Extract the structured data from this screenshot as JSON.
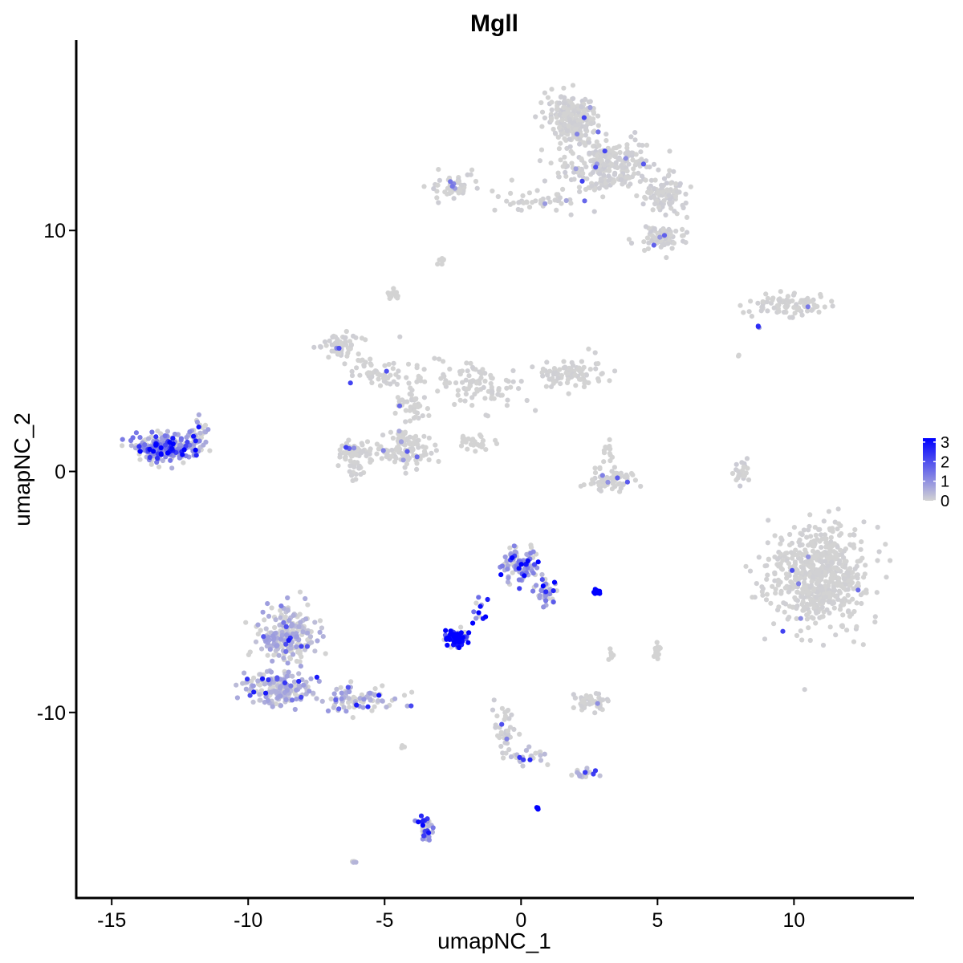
{
  "chart_data": {
    "type": "scatter",
    "title": "Mgll",
    "xlabel": "umapNC_1",
    "ylabel": "umapNC_2",
    "xlim": [
      -16.3,
      14.4
    ],
    "ylim": [
      -17.7,
      17.9
    ],
    "x_ticks": [
      -15,
      -10,
      -5,
      0,
      5,
      10
    ],
    "x_tick_labels": [
      "-15",
      "-10",
      "-5",
      "0",
      "5",
      "10"
    ],
    "y_ticks": [
      -10,
      0,
      10
    ],
    "y_tick_labels": [
      "-10",
      "0",
      "10"
    ],
    "grid": false,
    "legend": {
      "position": "right",
      "type": "colorbar",
      "min": 0,
      "max": 3.2,
      "ticks": [
        0,
        1,
        2,
        3
      ],
      "tick_labels": [
        "0",
        "1",
        "2",
        "3"
      ],
      "low_color": "#d3d3d3",
      "high_color": "#0000ff"
    },
    "clusters": [
      {
        "cx": 1.8,
        "cy": 14.6,
        "sx": 0.8,
        "sy": 0.9,
        "n": 220,
        "expr": 0.1,
        "hi_frac": 0.02
      },
      {
        "cx": 3.2,
        "cy": 12.6,
        "sx": 1.6,
        "sy": 1.1,
        "n": 260,
        "expr": 0.1,
        "hi_frac": 0.02
      },
      {
        "cx": 5.3,
        "cy": 11.5,
        "sx": 0.7,
        "sy": 0.8,
        "n": 90,
        "expr": 0.1,
        "hi_frac": 0.02
      },
      {
        "cx": 5.2,
        "cy": 9.7,
        "sx": 0.8,
        "sy": 0.5,
        "n": 80,
        "expr": 0.1,
        "hi_frac": 0.03
      },
      {
        "cx": 0.6,
        "cy": 11.2,
        "sx": 1.3,
        "sy": 0.3,
        "n": 40,
        "expr": 0.05,
        "hi_frac": 0.05
      },
      {
        "cx": -2.4,
        "cy": 11.8,
        "sx": 0.9,
        "sy": 0.4,
        "n": 60,
        "expr": 0.1,
        "hi_frac": 0.05
      },
      {
        "cx": -2.9,
        "cy": 8.8,
        "sx": 0.15,
        "sy": 0.15,
        "n": 8,
        "expr": 0.0,
        "hi_frac": 0.0
      },
      {
        "cx": -4.6,
        "cy": 7.4,
        "sx": 0.2,
        "sy": 0.3,
        "n": 15,
        "expr": 0.0,
        "hi_frac": 0.0
      },
      {
        "cx": 9.8,
        "cy": 6.9,
        "sx": 1.3,
        "sy": 0.35,
        "n": 90,
        "expr": 0.05,
        "hi_frac": 0.02
      },
      {
        "cx": -6.7,
        "cy": 5.2,
        "sx": 0.8,
        "sy": 0.5,
        "n": 60,
        "expr": 0.1,
        "hi_frac": 0.03
      },
      {
        "cx": -5.4,
        "cy": 4.0,
        "sx": 0.8,
        "sy": 0.6,
        "n": 45,
        "expr": 0.05,
        "hi_frac": 0.03
      },
      {
        "cx": -4.0,
        "cy": 3.0,
        "sx": 0.6,
        "sy": 1.5,
        "n": 60,
        "expr": 0.05,
        "hi_frac": 0.03
      },
      {
        "cx": -1.5,
        "cy": 3.6,
        "sx": 1.3,
        "sy": 0.9,
        "n": 90,
        "expr": 0.05,
        "hi_frac": 0.02
      },
      {
        "cx": 1.8,
        "cy": 4.1,
        "sx": 1.2,
        "sy": 0.6,
        "n": 90,
        "expr": 0.05,
        "hi_frac": 0.02
      },
      {
        "cx": -4.3,
        "cy": 0.9,
        "sx": 0.8,
        "sy": 0.7,
        "n": 110,
        "expr": 0.05,
        "hi_frac": 0.02
      },
      {
        "cx": -6.1,
        "cy": 0.6,
        "sx": 0.6,
        "sy": 0.6,
        "n": 70,
        "expr": 0.05,
        "hi_frac": 0.02
      },
      {
        "cx": -1.7,
        "cy": 1.2,
        "sx": 0.8,
        "sy": 0.3,
        "n": 25,
        "expr": 0.0,
        "hi_frac": 0.0
      },
      {
        "cx": -13.1,
        "cy": 1.0,
        "sx": 0.9,
        "sy": 0.5,
        "n": 280,
        "expr": 1.3,
        "hi_frac": 0.18
      },
      {
        "cx": -11.8,
        "cy": 1.6,
        "sx": 0.35,
        "sy": 0.6,
        "n": 40,
        "expr": 1.0,
        "hi_frac": 0.1
      },
      {
        "cx": 3.2,
        "cy": -0.3,
        "sx": 0.8,
        "sy": 0.5,
        "n": 70,
        "expr": 0.05,
        "hi_frac": 0.03
      },
      {
        "cx": 3.2,
        "cy": 0.9,
        "sx": 0.2,
        "sy": 0.5,
        "n": 12,
        "expr": 0.0,
        "hi_frac": 0.0
      },
      {
        "cx": 8.1,
        "cy": 0.0,
        "sx": 0.25,
        "sy": 0.5,
        "n": 25,
        "expr": 0.1,
        "hi_frac": 0.05
      },
      {
        "cx": 10.9,
        "cy": -4.3,
        "sx": 1.6,
        "sy": 1.8,
        "n": 620,
        "expr": 0.05,
        "hi_frac": 0.015
      },
      {
        "cx": -0.1,
        "cy": -3.9,
        "sx": 0.6,
        "sy": 0.7,
        "n": 110,
        "expr": 1.2,
        "hi_frac": 0.12
      },
      {
        "cx": 0.9,
        "cy": -4.9,
        "sx": 0.35,
        "sy": 0.7,
        "n": 40,
        "expr": 1.2,
        "hi_frac": 0.12
      },
      {
        "cx": 2.8,
        "cy": -5.0,
        "sx": 0.12,
        "sy": 0.08,
        "n": 14,
        "expr": 3.1,
        "hi_frac": 1.0
      },
      {
        "cx": -2.4,
        "cy": -6.9,
        "sx": 0.35,
        "sy": 0.28,
        "n": 80,
        "expr": 2.0,
        "hi_frac": 0.5
      },
      {
        "cx": -1.5,
        "cy": -5.6,
        "sx": 0.3,
        "sy": 0.6,
        "n": 12,
        "expr": 2.0,
        "hi_frac": 0.5
      },
      {
        "cx": -8.6,
        "cy": -6.8,
        "sx": 0.9,
        "sy": 1.1,
        "n": 220,
        "expr": 0.7,
        "hi_frac": 0.05
      },
      {
        "cx": -8.9,
        "cy": -9.0,
        "sx": 1.1,
        "sy": 0.6,
        "n": 180,
        "expr": 0.7,
        "hi_frac": 0.05
      },
      {
        "cx": -5.9,
        "cy": -9.4,
        "sx": 1.4,
        "sy": 0.5,
        "n": 90,
        "expr": 0.8,
        "hi_frac": 0.06
      },
      {
        "cx": 5.0,
        "cy": -7.4,
        "sx": 0.12,
        "sy": 0.3,
        "n": 15,
        "expr": 0.0,
        "hi_frac": 0.0
      },
      {
        "cx": 3.3,
        "cy": -7.6,
        "sx": 0.1,
        "sy": 0.25,
        "n": 8,
        "expr": 0.0,
        "hi_frac": 0.0
      },
      {
        "cx": 2.5,
        "cy": -9.5,
        "sx": 0.6,
        "sy": 0.3,
        "n": 50,
        "expr": 0.1,
        "hi_frac": 0.03
      },
      {
        "cx": -0.6,
        "cy": -10.7,
        "sx": 0.35,
        "sy": 1.0,
        "n": 40,
        "expr": 0.1,
        "hi_frac": 0.05
      },
      {
        "cx": 0.3,
        "cy": -11.8,
        "sx": 0.6,
        "sy": 0.3,
        "n": 25,
        "expr": 0.5,
        "hi_frac": 0.2
      },
      {
        "cx": 2.3,
        "cy": -12.5,
        "sx": 0.4,
        "sy": 0.2,
        "n": 20,
        "expr": 0.5,
        "hi_frac": 0.15
      },
      {
        "cx": -3.5,
        "cy": -14.8,
        "sx": 0.25,
        "sy": 0.6,
        "n": 40,
        "expr": 1.2,
        "hi_frac": 0.2
      },
      {
        "cx": 0.6,
        "cy": -14.0,
        "sx": 0.06,
        "sy": 0.06,
        "n": 5,
        "expr": 2.8,
        "hi_frac": 1.0
      },
      {
        "cx": -6.1,
        "cy": -16.2,
        "sx": 0.08,
        "sy": 0.05,
        "n": 5,
        "expr": 0.5,
        "hi_frac": 0.2
      },
      {
        "cx": -4.3,
        "cy": -11.5,
        "sx": 0.15,
        "sy": 0.1,
        "n": 4,
        "expr": 0.0,
        "hi_frac": 0.0
      },
      {
        "cx": 8.0,
        "cy": 4.8,
        "sx": 0.05,
        "sy": 0.05,
        "n": 2,
        "expr": 0.0,
        "hi_frac": 0.0
      },
      {
        "cx": 8.7,
        "cy": 6.0,
        "sx": 0.1,
        "sy": 0.1,
        "n": 3,
        "expr": 1.0,
        "hi_frac": 0.5
      }
    ]
  }
}
